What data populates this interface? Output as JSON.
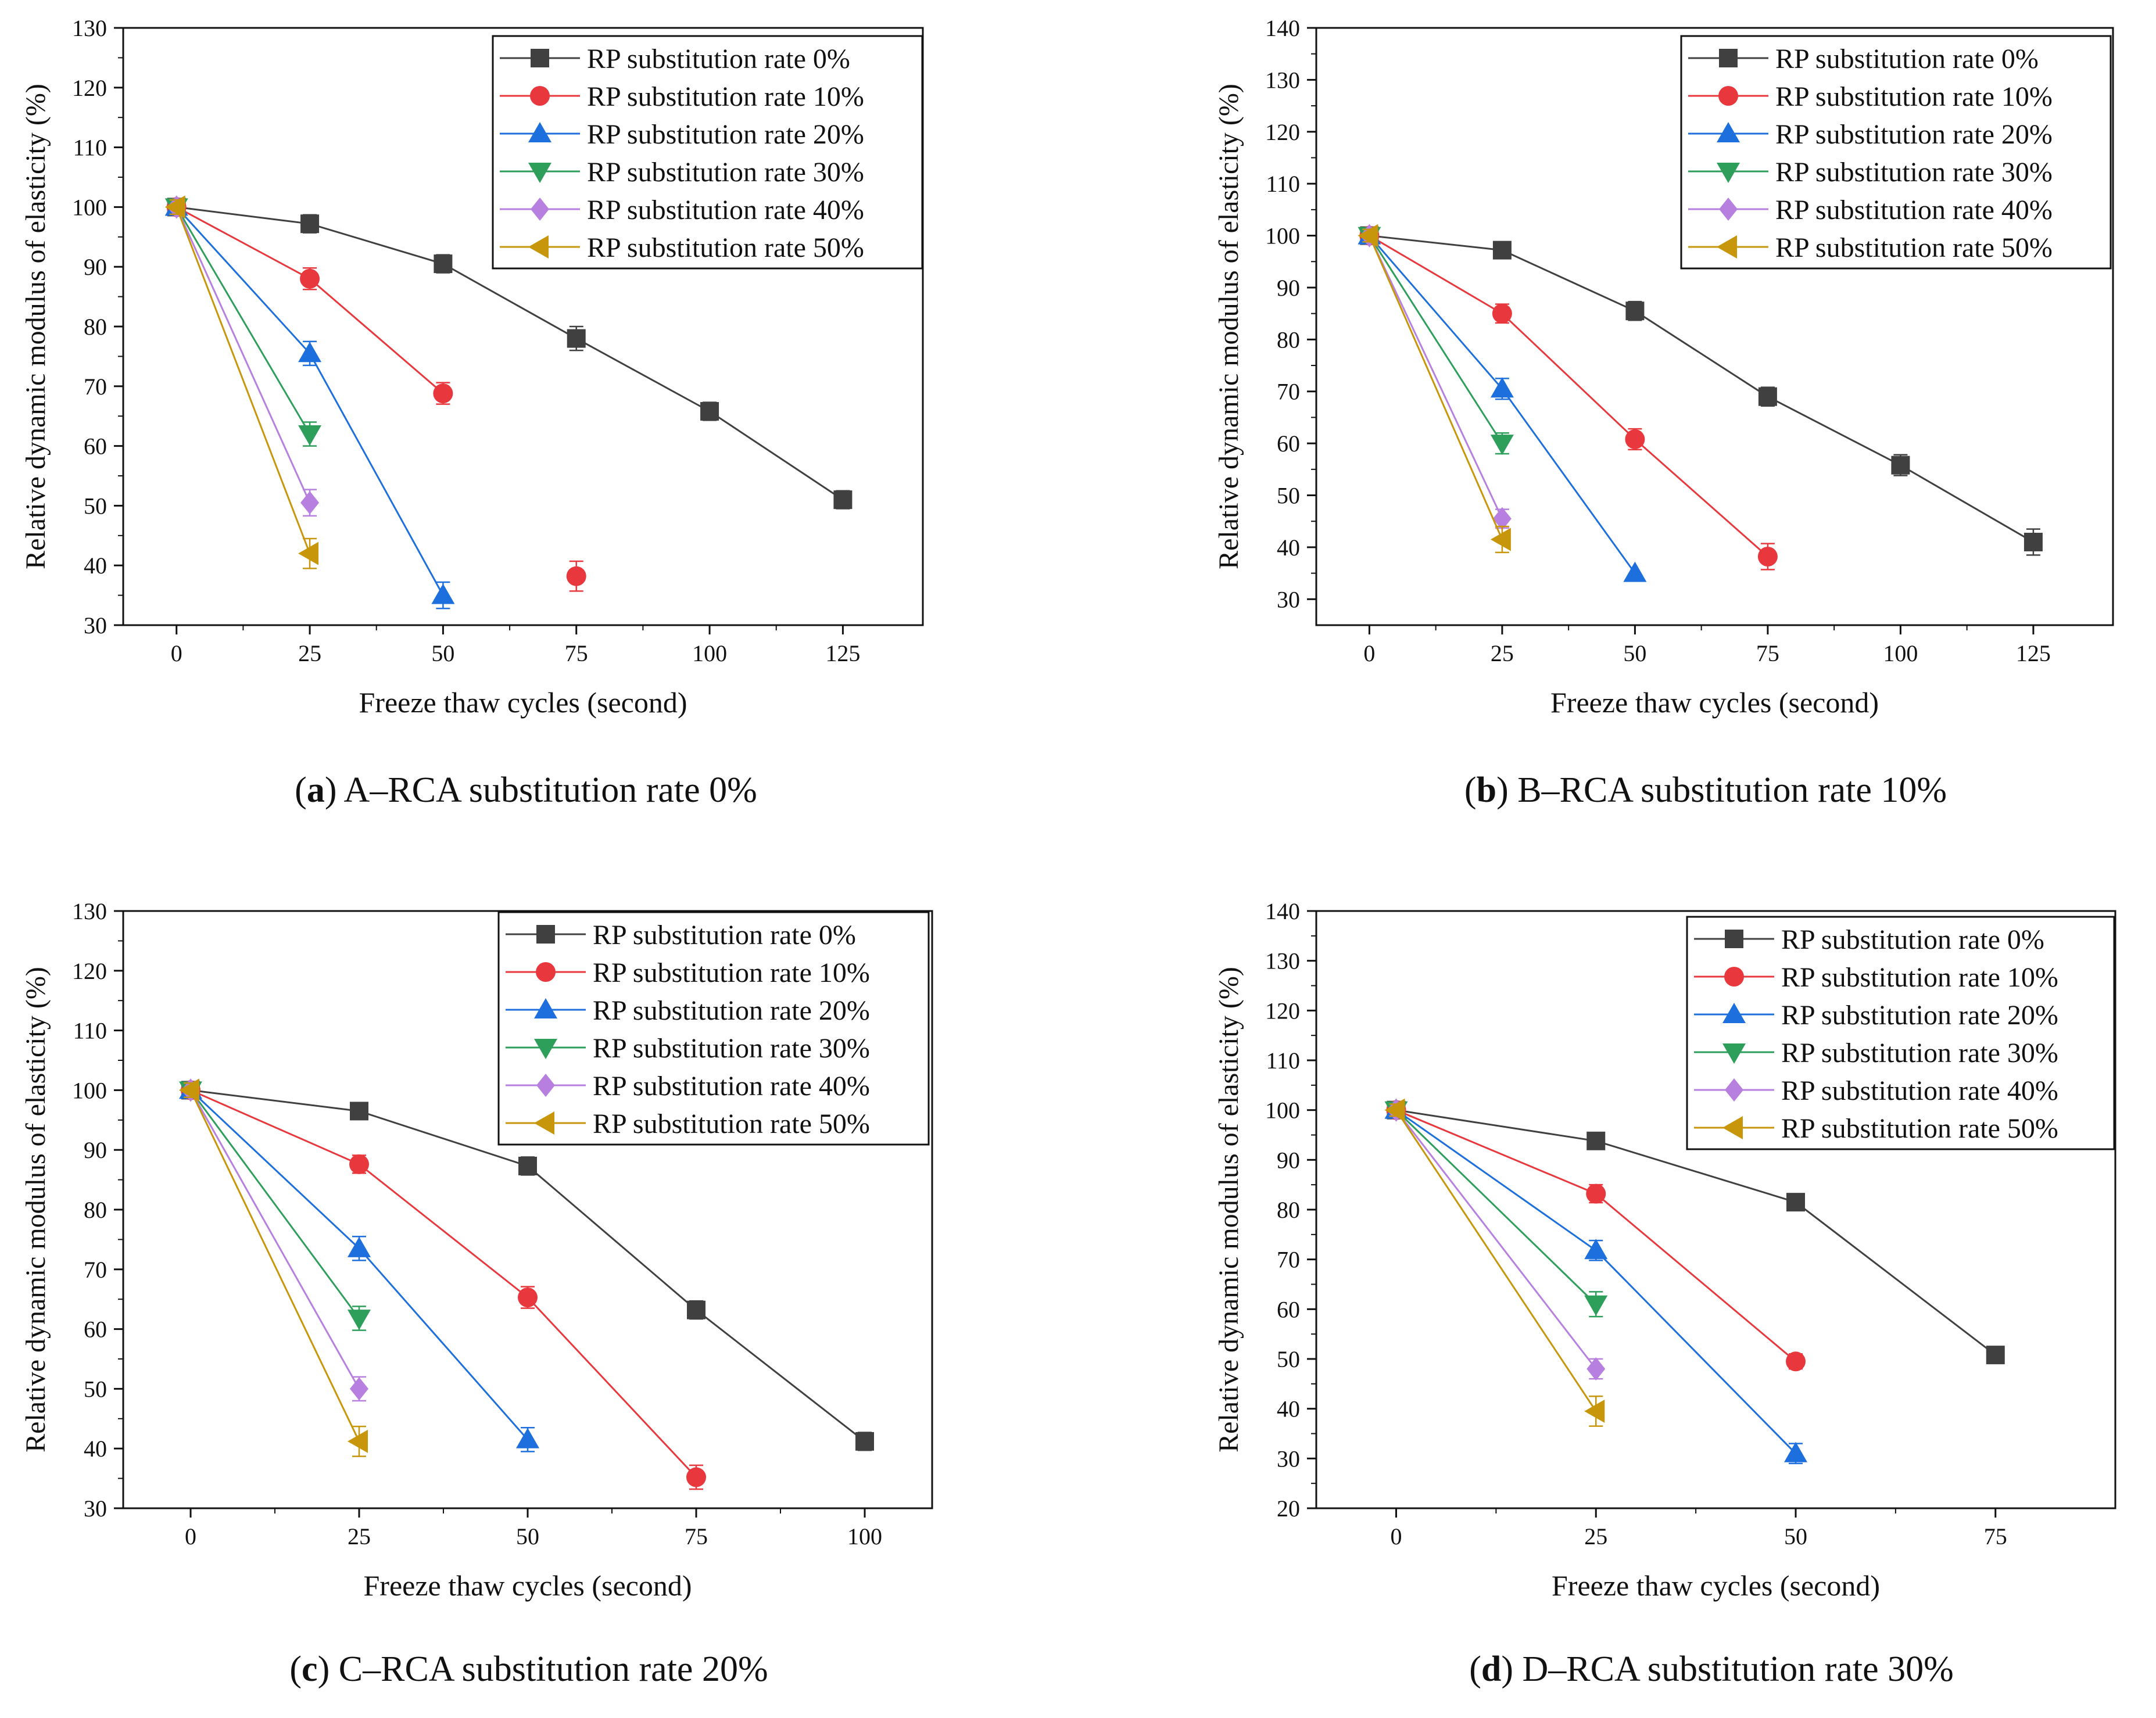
{
  "chart_data": [
    {
      "panel_letter": "a",
      "caption": "A–RCA substitution rate 0%",
      "type": "line",
      "xlabel": "Freeze thaw cycles (second)",
      "ylabel": "Relative dynamic modulus of elasticity (%)",
      "xlim": [
        -10,
        140
      ],
      "ylim": [
        30,
        130
      ],
      "xticks": [
        0,
        25,
        50,
        75,
        100,
        125
      ],
      "yticks": [
        30,
        40,
        50,
        60,
        70,
        80,
        90,
        100,
        110,
        120,
        130
      ],
      "legend_position": "top-right",
      "series": [
        {
          "name": "RP substitution rate 0%",
          "color": "#404040",
          "marker": "square",
          "x": [
            0,
            25,
            50,
            75,
            100,
            125
          ],
          "y": [
            100,
            97.2,
            90.5,
            78,
            65.8,
            51
          ],
          "error": [
            1.2,
            1.5,
            1.5,
            2,
            1.5,
            1.5
          ]
        },
        {
          "name": "RP substitution rate 10%",
          "color": "#e8383d",
          "marker": "circle",
          "x": [
            0,
            25,
            50
          ],
          "y": [
            100,
            88,
            68.8
          ],
          "error": [
            1.2,
            1.8,
            1.8
          ]
        },
        {
          "name": "RP substitution rate 20%",
          "color": "#1c6fdc",
          "marker": "triangle-up",
          "x": [
            0,
            25,
            50
          ],
          "y": [
            100,
            75.5,
            35
          ],
          "error": [
            1.2,
            2,
            2.2
          ]
        },
        {
          "name": "RP substitution rate 30%",
          "color": "#2e9e5b",
          "marker": "triangle-down",
          "x": [
            0,
            25
          ],
          "y": [
            100,
            62
          ],
          "error": [
            1.2,
            2
          ]
        },
        {
          "name": "RP substitution rate 40%",
          "color": "#b77fdf",
          "marker": "diamond",
          "x": [
            0,
            25
          ],
          "y": [
            100,
            50.5
          ],
          "error": [
            1.2,
            2.2
          ]
        },
        {
          "name": "RP substitution rate 50%",
          "color": "#c8960a",
          "marker": "triangle-left",
          "x": [
            0,
            25
          ],
          "y": [
            100,
            42
          ],
          "error": [
            1.2,
            2.5
          ]
        }
      ],
      "extra_points": [
        {
          "series_index": 1,
          "x": 75,
          "y": 38.2,
          "error": 2.5
        }
      ]
    },
    {
      "panel_letter": "b",
      "caption": "B–RCA substitution rate 10%",
      "type": "line",
      "xlabel": "Freeze thaw cycles (second)",
      "ylabel": "Relative dynamic modulus of elasticity (%)",
      "xlim": [
        -10,
        140
      ],
      "ylim": [
        25,
        140
      ],
      "xticks": [
        0,
        25,
        50,
        75,
        100,
        125
      ],
      "yticks": [
        30,
        40,
        50,
        60,
        70,
        80,
        90,
        100,
        110,
        120,
        130,
        140
      ],
      "legend_position": "top-right",
      "series": [
        {
          "name": "RP substitution rate 0%",
          "color": "#404040",
          "marker": "square",
          "x": [
            0,
            25,
            50,
            75,
            100,
            125
          ],
          "y": [
            100,
            97.2,
            85.5,
            69,
            55.8,
            41
          ],
          "error": [
            1.2,
            1.5,
            1.8,
            1.8,
            2,
            2.5
          ]
        },
        {
          "name": "RP substitution rate 10%",
          "color": "#e8383d",
          "marker": "circle",
          "x": [
            0,
            25,
            50,
            75
          ],
          "y": [
            100,
            85,
            60.8,
            38.2
          ],
          "error": [
            1.2,
            1.8,
            2,
            2.5
          ]
        },
        {
          "name": "RP substitution rate 20%",
          "color": "#1c6fdc",
          "marker": "triangle-up",
          "x": [
            0,
            25,
            50
          ],
          "y": [
            100,
            70.5,
            35
          ],
          "error": [
            1.2,
            2,
            0
          ]
        },
        {
          "name": "RP substitution rate 30%",
          "color": "#2e9e5b",
          "marker": "triangle-down",
          "x": [
            0,
            25
          ],
          "y": [
            100,
            60
          ],
          "error": [
            1.2,
            2
          ]
        },
        {
          "name": "RP substitution rate 40%",
          "color": "#b77fdf",
          "marker": "diamond",
          "x": [
            0,
            25
          ],
          "y": [
            100,
            45.5
          ],
          "error": [
            1.2,
            1.8
          ]
        },
        {
          "name": "RP substitution rate 50%",
          "color": "#c8960a",
          "marker": "triangle-left",
          "x": [
            0,
            25
          ],
          "y": [
            100,
            41.5
          ],
          "error": [
            1.2,
            2.5
          ]
        }
      ]
    },
    {
      "panel_letter": "c",
      "caption": "C–RCA substitution rate 20%",
      "type": "line",
      "xlabel": "Freeze thaw cycles (second)",
      "ylabel": "Relative dynamic modulus of elasticity (%)",
      "xlim": [
        -10,
        110
      ],
      "ylim": [
        30,
        130
      ],
      "xticks": [
        0,
        25,
        50,
        75,
        100
      ],
      "yticks": [
        30,
        40,
        50,
        60,
        70,
        80,
        90,
        100,
        110,
        120,
        130
      ],
      "legend_position": "top-right",
      "series": [
        {
          "name": "RP substitution rate 0%",
          "color": "#404040",
          "marker": "square",
          "x": [
            0,
            25,
            50,
            75,
            100
          ],
          "y": [
            100,
            96.5,
            87.3,
            63.2,
            41.2
          ],
          "error": [
            1.2,
            1.2,
            1.5,
            1.5,
            1.5
          ]
        },
        {
          "name": "RP substitution rate 10%",
          "color": "#e8383d",
          "marker": "circle",
          "x": [
            0,
            25,
            50,
            75
          ],
          "y": [
            100,
            87.6,
            65.3,
            35.2
          ],
          "error": [
            1.2,
            1.5,
            1.8,
            2
          ]
        },
        {
          "name": "RP substitution rate 20%",
          "color": "#1c6fdc",
          "marker": "triangle-up",
          "x": [
            0,
            25,
            50
          ],
          "y": [
            100,
            73.5,
            41.5
          ],
          "error": [
            1.2,
            2,
            2
          ]
        },
        {
          "name": "RP substitution rate 30%",
          "color": "#2e9e5b",
          "marker": "triangle-down",
          "x": [
            0,
            25
          ],
          "y": [
            100,
            61.8
          ],
          "error": [
            1.2,
            2
          ]
        },
        {
          "name": "RP substitution rate 40%",
          "color": "#b77fdf",
          "marker": "diamond",
          "x": [
            0,
            25
          ],
          "y": [
            100,
            50
          ],
          "error": [
            1.2,
            2
          ]
        },
        {
          "name": "RP substitution rate 50%",
          "color": "#c8960a",
          "marker": "triangle-left",
          "x": [
            0,
            25
          ],
          "y": [
            100,
            41.2
          ],
          "error": [
            1.2,
            2.5
          ]
        }
      ]
    },
    {
      "panel_letter": "d",
      "caption": "D–RCA substitution rate 30%",
      "type": "line",
      "xlabel": "Freeze thaw cycles (second)",
      "ylabel": "Relative dynamic modulus of elasticity (%)",
      "xlim": [
        -10,
        90
      ],
      "ylim": [
        20,
        140
      ],
      "xticks": [
        0,
        25,
        50,
        75
      ],
      "yticks": [
        20,
        30,
        40,
        50,
        60,
        70,
        80,
        90,
        100,
        110,
        120,
        130,
        140
      ],
      "legend_position": "top-right",
      "series": [
        {
          "name": "RP substitution rate 0%",
          "color": "#404040",
          "marker": "square",
          "x": [
            0,
            25,
            50,
            75
          ],
          "y": [
            100,
            93.8,
            81.5,
            50.8
          ],
          "error": [
            1.2,
            1.5,
            1.5,
            1.5
          ]
        },
        {
          "name": "RP substitution rate 10%",
          "color": "#e8383d",
          "marker": "circle",
          "x": [
            0,
            25,
            50
          ],
          "y": [
            100,
            83.2,
            49.5
          ],
          "error": [
            1.2,
            1.8,
            1.5
          ]
        },
        {
          "name": "RP substitution rate 20%",
          "color": "#1c6fdc",
          "marker": "triangle-up",
          "x": [
            0,
            25,
            50
          ],
          "y": [
            100,
            71.8,
            31
          ],
          "error": [
            1.2,
            2,
            2
          ]
        },
        {
          "name": "RP substitution rate 30%",
          "color": "#2e9e5b",
          "marker": "triangle-down",
          "x": [
            0,
            25
          ],
          "y": [
            100,
            61
          ],
          "error": [
            1.2,
            2.5
          ]
        },
        {
          "name": "RP substitution rate 40%",
          "color": "#b77fdf",
          "marker": "diamond",
          "x": [
            0,
            25
          ],
          "y": [
            100,
            48
          ],
          "error": [
            1.2,
            2
          ]
        },
        {
          "name": "RP substitution rate 50%",
          "color": "#c8960a",
          "marker": "triangle-left",
          "x": [
            0,
            25
          ],
          "y": [
            100,
            39.5
          ],
          "error": [
            1.2,
            3
          ]
        }
      ]
    }
  ]
}
